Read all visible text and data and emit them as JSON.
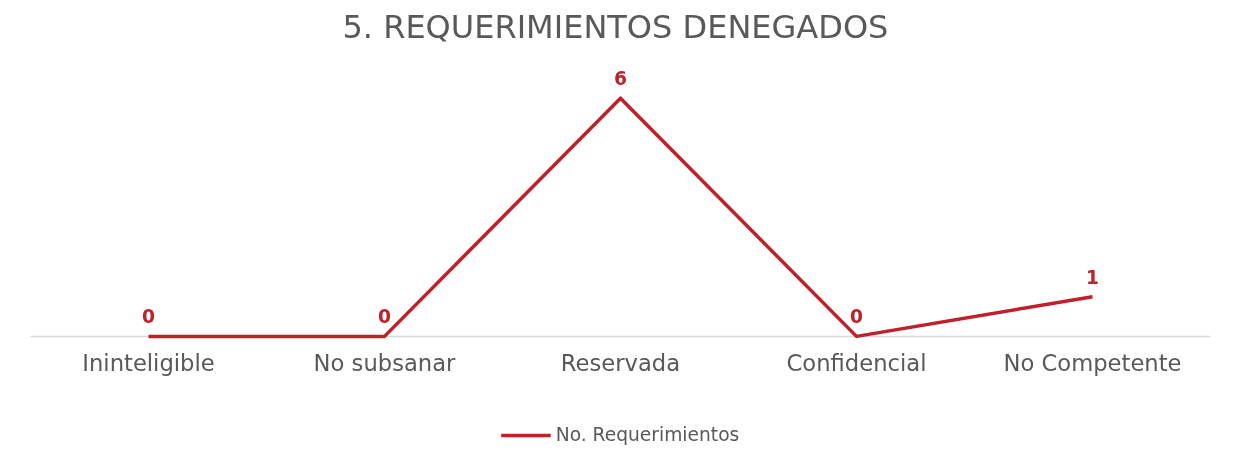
{
  "chart_data": {
    "type": "line",
    "title": "5.  REQUERIMIENTOS DENEGADOS",
    "categories": [
      "Ininteligible",
      "No subsanar",
      "Reservada",
      "Confidencial",
      "No Competente"
    ],
    "series": [
      {
        "name": "No. Requerimientos",
        "color": "#c0202a",
        "values": [
          0,
          0,
          6,
          0,
          1
        ]
      }
    ],
    "data_labels": true,
    "legend": "bottom",
    "grid": false,
    "marker": "none",
    "line_style": "solid"
  }
}
